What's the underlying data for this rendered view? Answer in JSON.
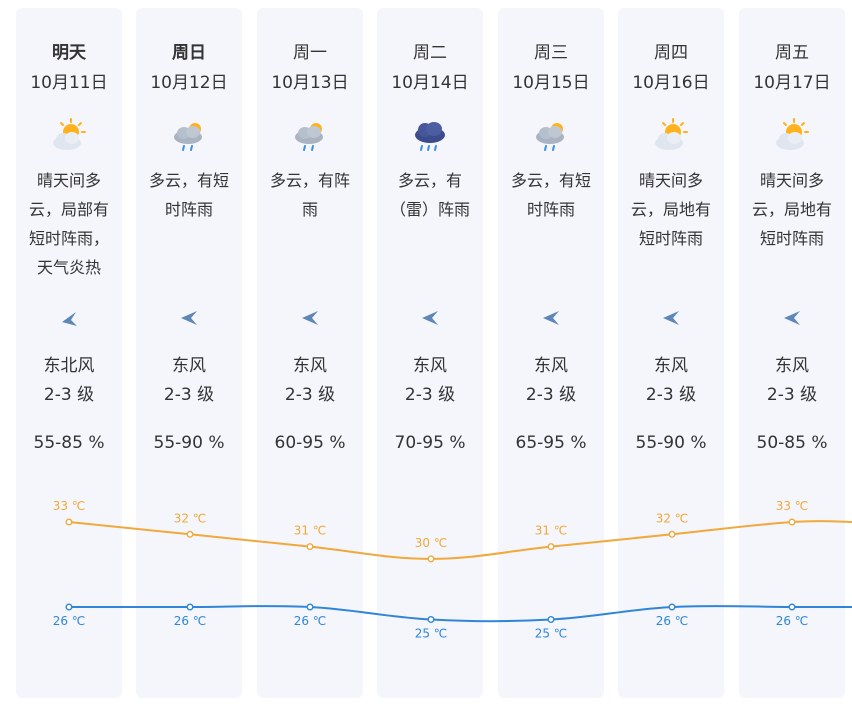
{
  "colors": {
    "high": "#f0a93a",
    "low": "#2f86d8",
    "column_bg": "#f4f6fb",
    "text": "#333333"
  },
  "days": [
    {
      "dow": "明天",
      "date": "10月11日",
      "icon": "sun-cloud-icon",
      "desc": [
        "晴天间多",
        "云，局部有",
        "短时阵雨，",
        "天气炎热"
      ],
      "wind_icon": "wind-direction-northeast-icon",
      "wind": "东北风",
      "level": "2-3 级",
      "humidity": "55-85 %"
    },
    {
      "dow": "周日",
      "date": "10月12日",
      "icon": "cloud-rain-icon",
      "desc": [
        "多云，有短",
        "时阵雨"
      ],
      "wind_icon": "wind-direction-east-icon",
      "wind": "东风",
      "level": "2-3 级",
      "humidity": "55-90 %"
    },
    {
      "dow": "周一",
      "date": "10月13日",
      "icon": "cloud-rain-icon",
      "desc": [
        "多云，有阵",
        "雨"
      ],
      "wind_icon": "wind-direction-east-icon",
      "wind": "东风",
      "level": "2-3 级",
      "humidity": "60-95 %"
    },
    {
      "dow": "周二",
      "date": "10月14日",
      "icon": "thunder-rain-icon",
      "desc": [
        "多云，有",
        "（雷）阵雨"
      ],
      "wind_icon": "wind-direction-east-icon",
      "wind": "东风",
      "level": "2-3 级",
      "humidity": "70-95 %"
    },
    {
      "dow": "周三",
      "date": "10月15日",
      "icon": "cloud-rain-icon",
      "desc": [
        "多云，有短",
        "时阵雨"
      ],
      "wind_icon": "wind-direction-east-icon",
      "wind": "东风",
      "level": "2-3 级",
      "humidity": "65-95 %"
    },
    {
      "dow": "周四",
      "date": "10月16日",
      "icon": "sun-cloud-icon",
      "desc": [
        "晴天间多",
        "云，局地有",
        "短时阵雨"
      ],
      "wind_icon": "wind-direction-east-icon",
      "wind": "东风",
      "level": "2-3 级",
      "humidity": "55-90 %"
    },
    {
      "dow": "周五",
      "date": "10月17日",
      "icon": "sun-cloud-icon",
      "desc": [
        "晴天间多",
        "云，局地有",
        "短时阵雨"
      ],
      "wind_icon": "wind-direction-east-icon",
      "wind": "东风",
      "level": "2-3 级",
      "humidity": "50-85 %"
    }
  ],
  "chart_data": {
    "type": "line",
    "x": [
      "10月11日",
      "10月12日",
      "10月13日",
      "10月14日",
      "10月15日",
      "10月16日",
      "10月17日"
    ],
    "series": [
      {
        "values": [
          33,
          32,
          31,
          30,
          31,
          32,
          33
        ],
        "labels": [
          "33 ℃",
          "32 ℃",
          "31 ℃",
          "30 ℃",
          "31 ℃",
          "32 ℃",
          "33 ℃"
        ],
        "color": "#f0a93a"
      },
      {
        "values": [
          26,
          26,
          26,
          25,
          25,
          26,
          26
        ],
        "labels": [
          "26 ℃",
          "26 ℃",
          "26 ℃",
          "25 ℃",
          "25 ℃",
          "26 ℃",
          "26 ℃"
        ],
        "color": "#2f86d8"
      }
    ],
    "grid": false,
    "axes": "hidden"
  }
}
